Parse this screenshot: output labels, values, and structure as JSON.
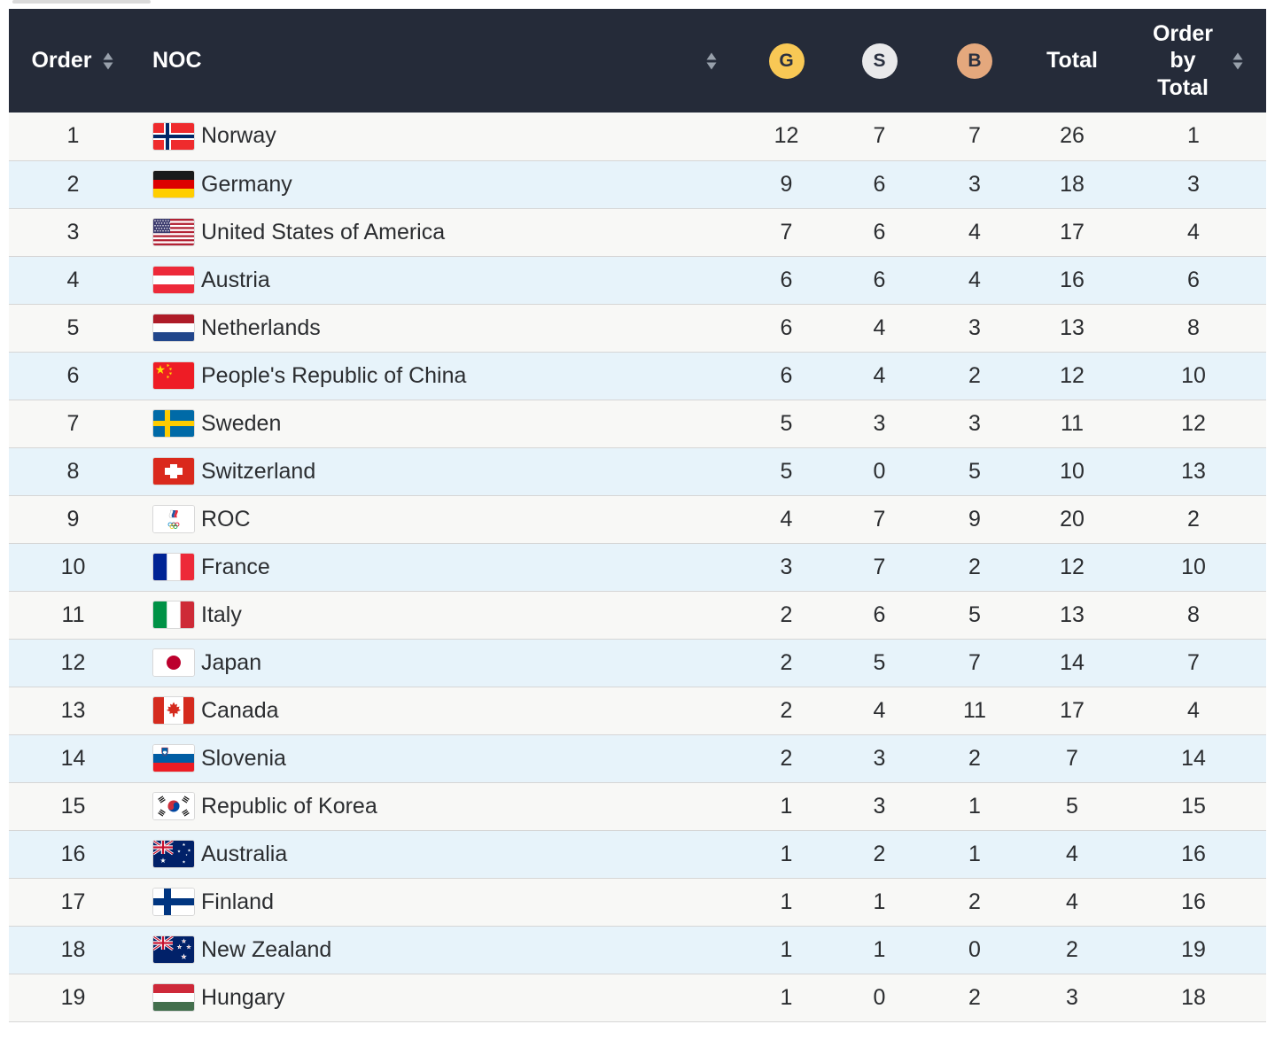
{
  "page": {
    "background": "#ffffff"
  },
  "icons": {
    "sort": "up-down-sort-arrows"
  },
  "table": {
    "header_bg": "#252B39",
    "header_text_color": "#ffffff",
    "sort_icon_color": "#98A0AB",
    "row_colors": {
      "odd": "#F8F8F6",
      "even": "#E7F3FA"
    },
    "separator_color": "#D6D6D6",
    "body_text_color": "#2B2D30",
    "medal_badges": {
      "gold": {
        "label": "G",
        "color": "#F8C855"
      },
      "silver": {
        "label": "S",
        "color": "#E9E9EB"
      },
      "bronze": {
        "label": "B",
        "color": "#E4A87D"
      }
    },
    "columns": [
      {
        "key": "order",
        "label": "Order",
        "sortable": true
      },
      {
        "key": "noc",
        "label": "NOC",
        "sortable": true
      },
      {
        "key": "gold",
        "label": "G",
        "sortable": false
      },
      {
        "key": "silver",
        "label": "S",
        "sortable": false
      },
      {
        "key": "bronze",
        "label": "B",
        "sortable": false
      },
      {
        "key": "total",
        "label": "Total",
        "sortable": false
      },
      {
        "key": "order_by_total",
        "label": "Order by Total",
        "sortable": true
      }
    ],
    "rows": [
      {
        "order": 1,
        "noc": "Norway",
        "flag": "NOR",
        "gold": 12,
        "silver": 7,
        "bronze": 7,
        "total": 26,
        "order_by_total": 1
      },
      {
        "order": 2,
        "noc": "Germany",
        "flag": "GER",
        "gold": 9,
        "silver": 6,
        "bronze": 3,
        "total": 18,
        "order_by_total": 3
      },
      {
        "order": 3,
        "noc": "United States of America",
        "flag": "USA",
        "gold": 7,
        "silver": 6,
        "bronze": 4,
        "total": 17,
        "order_by_total": 4
      },
      {
        "order": 4,
        "noc": "Austria",
        "flag": "AUT",
        "gold": 6,
        "silver": 6,
        "bronze": 4,
        "total": 16,
        "order_by_total": 6
      },
      {
        "order": 5,
        "noc": "Netherlands",
        "flag": "NED",
        "gold": 6,
        "silver": 4,
        "bronze": 3,
        "total": 13,
        "order_by_total": 8
      },
      {
        "order": 6,
        "noc": "People's Republic of China",
        "flag": "CHN",
        "gold": 6,
        "silver": 4,
        "bronze": 2,
        "total": 12,
        "order_by_total": 10
      },
      {
        "order": 7,
        "noc": "Sweden",
        "flag": "SWE",
        "gold": 5,
        "silver": 3,
        "bronze": 3,
        "total": 11,
        "order_by_total": 12
      },
      {
        "order": 8,
        "noc": "Switzerland",
        "flag": "SUI",
        "gold": 5,
        "silver": 0,
        "bronze": 5,
        "total": 10,
        "order_by_total": 13
      },
      {
        "order": 9,
        "noc": "ROC",
        "flag": "ROC",
        "gold": 4,
        "silver": 7,
        "bronze": 9,
        "total": 20,
        "order_by_total": 2
      },
      {
        "order": 10,
        "noc": "France",
        "flag": "FRA",
        "gold": 3,
        "silver": 7,
        "bronze": 2,
        "total": 12,
        "order_by_total": 10
      },
      {
        "order": 11,
        "noc": "Italy",
        "flag": "ITA",
        "gold": 2,
        "silver": 6,
        "bronze": 5,
        "total": 13,
        "order_by_total": 8
      },
      {
        "order": 12,
        "noc": "Japan",
        "flag": "JPN",
        "gold": 2,
        "silver": 5,
        "bronze": 7,
        "total": 14,
        "order_by_total": 7
      },
      {
        "order": 13,
        "noc": "Canada",
        "flag": "CAN",
        "gold": 2,
        "silver": 4,
        "bronze": 11,
        "total": 17,
        "order_by_total": 4
      },
      {
        "order": 14,
        "noc": "Slovenia",
        "flag": "SLO",
        "gold": 2,
        "silver": 3,
        "bronze": 2,
        "total": 7,
        "order_by_total": 14
      },
      {
        "order": 15,
        "noc": "Republic of Korea",
        "flag": "KOR",
        "gold": 1,
        "silver": 3,
        "bronze": 1,
        "total": 5,
        "order_by_total": 15
      },
      {
        "order": 16,
        "noc": "Australia",
        "flag": "AUS",
        "gold": 1,
        "silver": 2,
        "bronze": 1,
        "total": 4,
        "order_by_total": 16
      },
      {
        "order": 17,
        "noc": "Finland",
        "flag": "FIN",
        "gold": 1,
        "silver": 1,
        "bronze": 2,
        "total": 4,
        "order_by_total": 16
      },
      {
        "order": 18,
        "noc": "New Zealand",
        "flag": "NZL",
        "gold": 1,
        "silver": 1,
        "bronze": 0,
        "total": 2,
        "order_by_total": 19
      },
      {
        "order": 19,
        "noc": "Hungary",
        "flag": "HUN",
        "gold": 1,
        "silver": 0,
        "bronze": 2,
        "total": 3,
        "order_by_total": 18
      }
    ]
  }
}
